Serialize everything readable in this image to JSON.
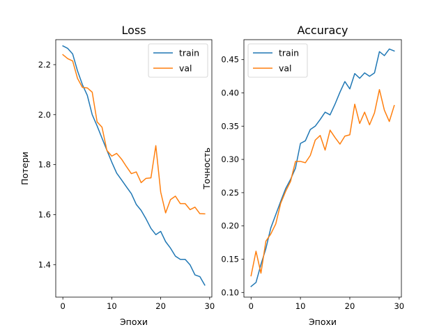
{
  "chart_data": [
    {
      "type": "line",
      "title": "Loss",
      "xlabel": "Эпохи",
      "ylabel": "Потери",
      "xlim": [
        -1.45,
        30.45
      ],
      "ylim": [
        1.27,
        2.3
      ],
      "xticks": [
        0,
        10,
        20,
        30
      ],
      "yticks": [
        1.4,
        1.6,
        1.8,
        2.0,
        2.2
      ],
      "ytick_labels": [
        "1.4",
        "1.6",
        "1.8",
        "2.0",
        "2.2"
      ],
      "legend": "top-right",
      "x": [
        0,
        1,
        2,
        3,
        4,
        5,
        6,
        7,
        8,
        9,
        10,
        11,
        12,
        13,
        14,
        15,
        16,
        17,
        18,
        19,
        20,
        21,
        22,
        23,
        24,
        25,
        26,
        27,
        28,
        29
      ],
      "series": [
        {
          "name": "train",
          "color": "#1f77b4",
          "values": [
            2.275,
            2.265,
            2.243,
            2.175,
            2.12,
            2.077,
            2.0,
            1.955,
            1.906,
            1.858,
            1.81,
            1.766,
            1.739,
            1.711,
            1.684,
            1.641,
            1.617,
            1.583,
            1.545,
            1.52,
            1.533,
            1.492,
            1.466,
            1.434,
            1.421,
            1.421,
            1.399,
            1.359,
            1.352,
            1.318
          ]
        },
        {
          "name": "val",
          "color": "#ff7f0e",
          "values": [
            2.24,
            2.224,
            2.215,
            2.145,
            2.109,
            2.107,
            2.09,
            1.971,
            1.95,
            1.857,
            1.834,
            1.845,
            1.822,
            1.792,
            1.764,
            1.771,
            1.728,
            1.745,
            1.747,
            1.876,
            1.69,
            1.607,
            1.66,
            1.674,
            1.644,
            1.644,
            1.62,
            1.63,
            1.604,
            1.603
          ]
        }
      ]
    },
    {
      "type": "line",
      "title": "Accuracy",
      "xlabel": "Эпохи",
      "ylabel": "Точность",
      "xlim": [
        -1.45,
        30.45
      ],
      "ylim": [
        0.093,
        0.48
      ],
      "xticks": [
        0,
        10,
        20,
        30
      ],
      "yticks": [
        0.1,
        0.15,
        0.2,
        0.25,
        0.3,
        0.35,
        0.4,
        0.45
      ],
      "ytick_labels": [
        "0.10",
        "0.15",
        "0.20",
        "0.25",
        "0.30",
        "0.35",
        "0.40",
        "0.45"
      ],
      "legend": "top-left",
      "x": [
        0,
        1,
        2,
        3,
        4,
        5,
        6,
        7,
        8,
        9,
        10,
        11,
        12,
        13,
        14,
        15,
        16,
        17,
        18,
        19,
        20,
        21,
        22,
        23,
        24,
        25,
        26,
        27,
        28,
        29
      ],
      "series": [
        {
          "name": "train",
          "color": "#1f77b4",
          "values": [
            0.109,
            0.115,
            0.142,
            0.166,
            0.197,
            0.217,
            0.237,
            0.256,
            0.27,
            0.287,
            0.324,
            0.328,
            0.345,
            0.35,
            0.36,
            0.371,
            0.367,
            0.383,
            0.401,
            0.417,
            0.406,
            0.429,
            0.422,
            0.43,
            0.425,
            0.43,
            0.462,
            0.456,
            0.466,
            0.463
          ]
        },
        {
          "name": "val",
          "color": "#ff7f0e",
          "values": [
            0.125,
            0.162,
            0.129,
            0.177,
            0.188,
            0.203,
            0.234,
            0.252,
            0.267,
            0.297,
            0.297,
            0.295,
            0.306,
            0.329,
            0.336,
            0.314,
            0.344,
            0.333,
            0.323,
            0.335,
            0.337,
            0.383,
            0.354,
            0.371,
            0.352,
            0.37,
            0.405,
            0.374,
            0.357,
            0.381
          ]
        }
      ]
    }
  ]
}
